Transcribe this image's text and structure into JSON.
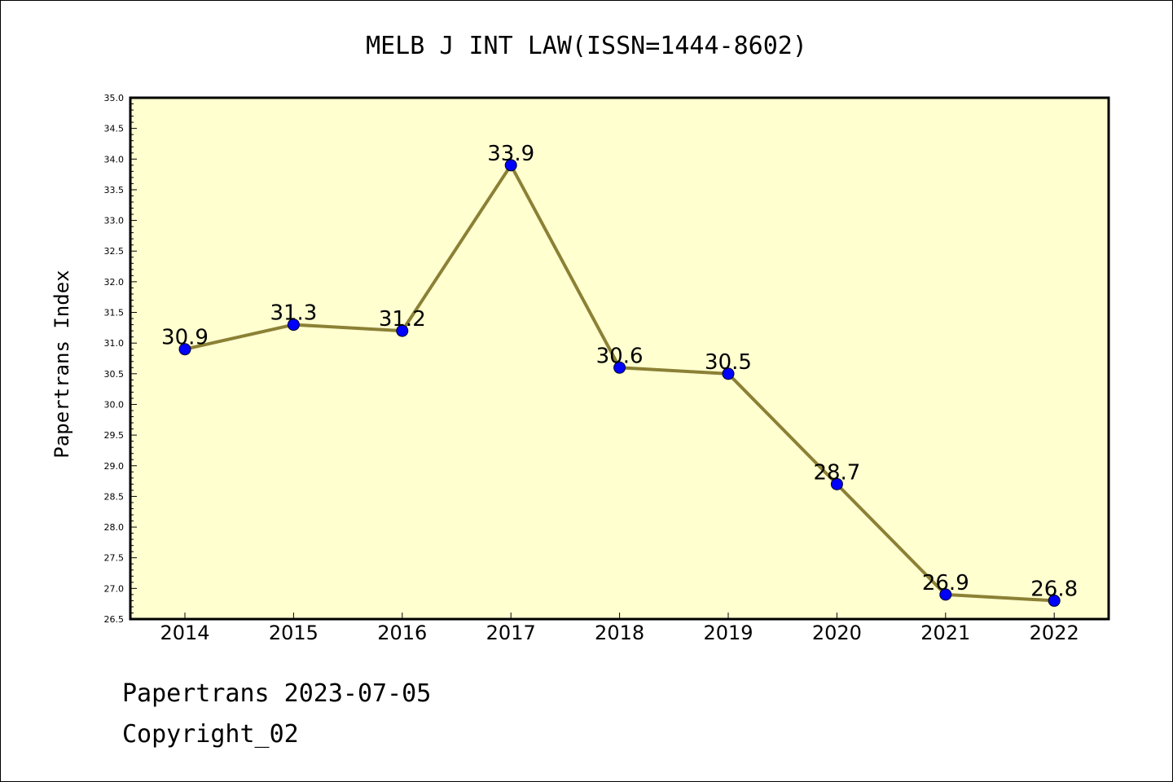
{
  "chart_data": {
    "type": "line",
    "title": "MELB J INT LAW(ISSN=1444-8602)",
    "ylabel": "Papertrans Index",
    "xlabel": "",
    "ylim": [
      26.5,
      35.0
    ],
    "ytick_step": 0.5,
    "categories": [
      "2014",
      "2015",
      "2016",
      "2017",
      "2018",
      "2019",
      "2020",
      "2021",
      "2022"
    ],
    "values": [
      30.9,
      31.3,
      31.2,
      33.9,
      30.6,
      30.5,
      28.7,
      26.9,
      26.8
    ],
    "data_labels": [
      "30.9",
      "31.3",
      "31.2",
      "33.9",
      "30.6",
      "30.5",
      "28.7",
      "26.9",
      "26.8"
    ],
    "colors": {
      "plot_background": "#ffffd0",
      "line": "#8b8035",
      "marker": "#0000ff"
    },
    "grid": false,
    "legend": "none"
  },
  "footer": {
    "date_line": "Papertrans 2023-07-05",
    "copyright_line": "Copyright_02"
  }
}
